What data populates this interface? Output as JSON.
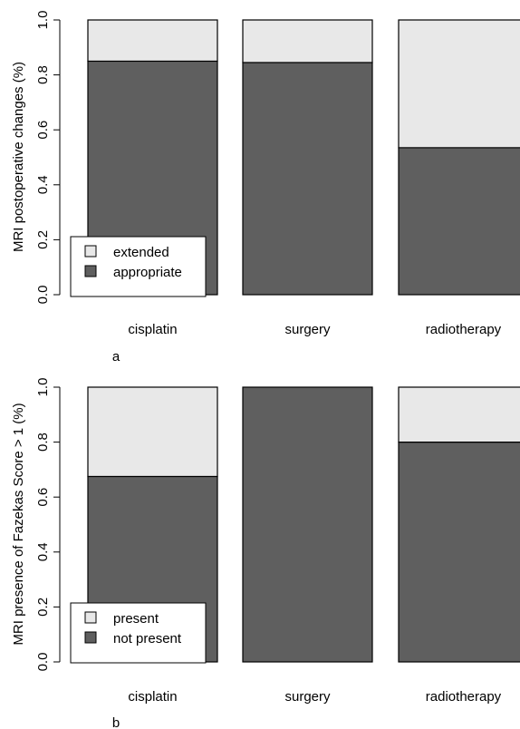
{
  "colors": {
    "upper": "#e8e8e8",
    "lower": "#5f5f5f",
    "stroke": "#000000"
  },
  "chart_data": [
    {
      "type": "bar",
      "stacked": true,
      "panel_label": "a",
      "ylabel": "MRI postoperative changes (%)",
      "ylim": [
        0,
        1
      ],
      "yticks": [
        "0.0",
        "0.2",
        "0.4",
        "0.6",
        "0.8",
        "1.0"
      ],
      "categories": [
        "cisplatin",
        "surgery",
        "radiotherapy"
      ],
      "series": [
        {
          "name": "appropriate",
          "values": [
            0.85,
            0.845,
            0.535
          ]
        },
        {
          "name": "extended",
          "values": [
            0.15,
            0.155,
            0.465
          ]
        }
      ],
      "legend": {
        "position": "bottom-left",
        "items": [
          "extended",
          "appropriate"
        ]
      }
    },
    {
      "type": "bar",
      "stacked": true,
      "panel_label": "b",
      "ylabel": "MRI presence of Fazekas Score > 1 (%)",
      "ylim": [
        0,
        1
      ],
      "yticks": [
        "0.0",
        "0.2",
        "0.4",
        "0.6",
        "0.8",
        "1.0"
      ],
      "categories": [
        "cisplatin",
        "surgery",
        "radiotherapy"
      ],
      "series": [
        {
          "name": "not present",
          "values": [
            0.675,
            1.0,
            0.8
          ]
        },
        {
          "name": "present",
          "values": [
            0.325,
            0.0,
            0.2
          ]
        }
      ],
      "legend": {
        "position": "bottom-left",
        "items": [
          "present",
          "not present"
        ]
      }
    }
  ]
}
